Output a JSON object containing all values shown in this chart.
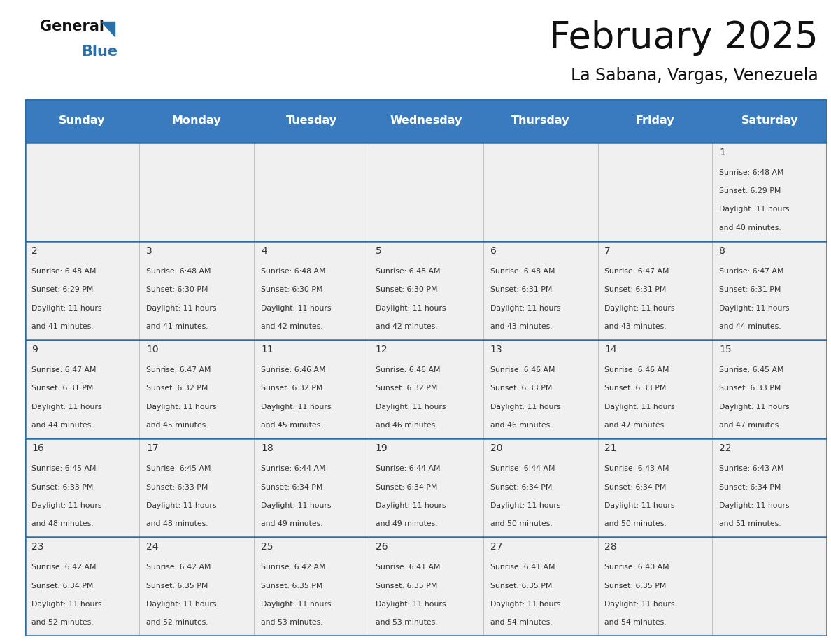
{
  "title": "February 2025",
  "subtitle": "La Sabana, Vargas, Venezuela",
  "days_of_week": [
    "Sunday",
    "Monday",
    "Tuesday",
    "Wednesday",
    "Thursday",
    "Friday",
    "Saturday"
  ],
  "header_bg": "#3a7abf",
  "header_text": "#ffffff",
  "cell_bg": "#f0f0f0",
  "grid_line_color": "#2e6da4",
  "text_color": "#333333",
  "calendar": [
    [
      null,
      null,
      null,
      null,
      null,
      null,
      {
        "day": "1",
        "sunrise": "6:48 AM",
        "sunset": "6:29 PM",
        "daylight": "11 hours",
        "daylight2": "and 40 minutes."
      }
    ],
    [
      {
        "day": "2",
        "sunrise": "6:48 AM",
        "sunset": "6:29 PM",
        "daylight": "11 hours",
        "daylight2": "and 41 minutes."
      },
      {
        "day": "3",
        "sunrise": "6:48 AM",
        "sunset": "6:30 PM",
        "daylight": "11 hours",
        "daylight2": "and 41 minutes."
      },
      {
        "day": "4",
        "sunrise": "6:48 AM",
        "sunset": "6:30 PM",
        "daylight": "11 hours",
        "daylight2": "and 42 minutes."
      },
      {
        "day": "5",
        "sunrise": "6:48 AM",
        "sunset": "6:30 PM",
        "daylight": "11 hours",
        "daylight2": "and 42 minutes."
      },
      {
        "day": "6",
        "sunrise": "6:48 AM",
        "sunset": "6:31 PM",
        "daylight": "11 hours",
        "daylight2": "and 43 minutes."
      },
      {
        "day": "7",
        "sunrise": "6:47 AM",
        "sunset": "6:31 PM",
        "daylight": "11 hours",
        "daylight2": "and 43 minutes."
      },
      {
        "day": "8",
        "sunrise": "6:47 AM",
        "sunset": "6:31 PM",
        "daylight": "11 hours",
        "daylight2": "and 44 minutes."
      }
    ],
    [
      {
        "day": "9",
        "sunrise": "6:47 AM",
        "sunset": "6:31 PM",
        "daylight": "11 hours",
        "daylight2": "and 44 minutes."
      },
      {
        "day": "10",
        "sunrise": "6:47 AM",
        "sunset": "6:32 PM",
        "daylight": "11 hours",
        "daylight2": "and 45 minutes."
      },
      {
        "day": "11",
        "sunrise": "6:46 AM",
        "sunset": "6:32 PM",
        "daylight": "11 hours",
        "daylight2": "and 45 minutes."
      },
      {
        "day": "12",
        "sunrise": "6:46 AM",
        "sunset": "6:32 PM",
        "daylight": "11 hours",
        "daylight2": "and 46 minutes."
      },
      {
        "day": "13",
        "sunrise": "6:46 AM",
        "sunset": "6:33 PM",
        "daylight": "11 hours",
        "daylight2": "and 46 minutes."
      },
      {
        "day": "14",
        "sunrise": "6:46 AM",
        "sunset": "6:33 PM",
        "daylight": "11 hours",
        "daylight2": "and 47 minutes."
      },
      {
        "day": "15",
        "sunrise": "6:45 AM",
        "sunset": "6:33 PM",
        "daylight": "11 hours",
        "daylight2": "and 47 minutes."
      }
    ],
    [
      {
        "day": "16",
        "sunrise": "6:45 AM",
        "sunset": "6:33 PM",
        "daylight": "11 hours",
        "daylight2": "and 48 minutes."
      },
      {
        "day": "17",
        "sunrise": "6:45 AM",
        "sunset": "6:33 PM",
        "daylight": "11 hours",
        "daylight2": "and 48 minutes."
      },
      {
        "day": "18",
        "sunrise": "6:44 AM",
        "sunset": "6:34 PM",
        "daylight": "11 hours",
        "daylight2": "and 49 minutes."
      },
      {
        "day": "19",
        "sunrise": "6:44 AM",
        "sunset": "6:34 PM",
        "daylight": "11 hours",
        "daylight2": "and 49 minutes."
      },
      {
        "day": "20",
        "sunrise": "6:44 AM",
        "sunset": "6:34 PM",
        "daylight": "11 hours",
        "daylight2": "and 50 minutes."
      },
      {
        "day": "21",
        "sunrise": "6:43 AM",
        "sunset": "6:34 PM",
        "daylight": "11 hours",
        "daylight2": "and 50 minutes."
      },
      {
        "day": "22",
        "sunrise": "6:43 AM",
        "sunset": "6:34 PM",
        "daylight": "11 hours",
        "daylight2": "and 51 minutes."
      }
    ],
    [
      {
        "day": "23",
        "sunrise": "6:42 AM",
        "sunset": "6:34 PM",
        "daylight": "11 hours",
        "daylight2": "and 52 minutes."
      },
      {
        "day": "24",
        "sunrise": "6:42 AM",
        "sunset": "6:35 PM",
        "daylight": "11 hours",
        "daylight2": "and 52 minutes."
      },
      {
        "day": "25",
        "sunrise": "6:42 AM",
        "sunset": "6:35 PM",
        "daylight": "11 hours",
        "daylight2": "and 53 minutes."
      },
      {
        "day": "26",
        "sunrise": "6:41 AM",
        "sunset": "6:35 PM",
        "daylight": "11 hours",
        "daylight2": "and 53 minutes."
      },
      {
        "day": "27",
        "sunrise": "6:41 AM",
        "sunset": "6:35 PM",
        "daylight": "11 hours",
        "daylight2": "and 54 minutes."
      },
      {
        "day": "28",
        "sunrise": "6:40 AM",
        "sunset": "6:35 PM",
        "daylight": "11 hours",
        "daylight2": "and 54 minutes."
      },
      null
    ]
  ]
}
